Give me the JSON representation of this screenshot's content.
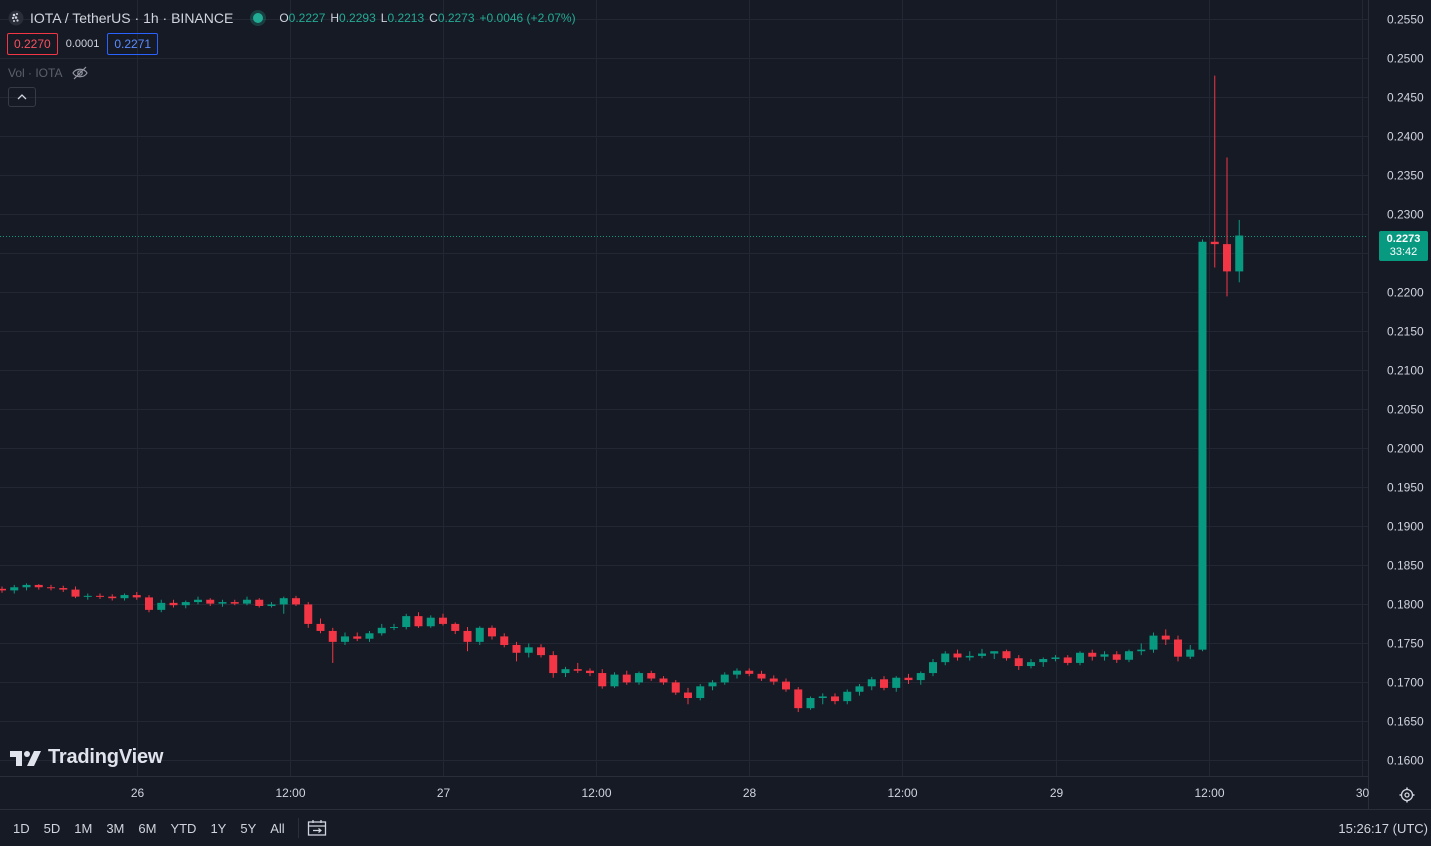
{
  "header": {
    "title": "IOTA / TetherUS · 1h · BINANCE",
    "ohlc": [
      {
        "key": "O",
        "value": "0.2227"
      },
      {
        "key": "H",
        "value": "0.2293"
      },
      {
        "key": "L",
        "value": "0.2213"
      },
      {
        "key": "C",
        "value": "0.2273"
      }
    ],
    "change": "+0.0046 (+2.07%)"
  },
  "quotes": {
    "bid": "0.2270",
    "spread": "0.0001",
    "ask": "0.2271"
  },
  "volume_label": "Vol · IOTA",
  "logo_text": "TradingView",
  "last_price": {
    "price": "0.2273",
    "countdown": "33:42"
  },
  "bottombar": {
    "ranges": [
      "1D",
      "5D",
      "1M",
      "3M",
      "6M",
      "YTD",
      "1Y",
      "5Y",
      "All"
    ],
    "clock": "15:26:17 (UTC)"
  },
  "colors": {
    "up": "#089981",
    "down": "#f23645",
    "background": "#161a25",
    "grid": "#232733"
  },
  "chart_data": {
    "type": "candlestick",
    "interval": "1h",
    "ylim": [
      0.158,
      0.2575
    ],
    "yticks": [
      "0.2550",
      "0.2500",
      "0.2450",
      "0.2400",
      "0.2350",
      "0.2300",
      "0.2250",
      "0.2200",
      "0.2150",
      "0.2100",
      "0.2050",
      "0.2000",
      "0.1950",
      "0.1900",
      "0.1850",
      "0.1800",
      "0.1750",
      "0.1700",
      "0.1650",
      "0.1600"
    ],
    "xticks": [
      "26",
      "12:00",
      "27",
      "12:00",
      "28",
      "12:00",
      "29",
      "12:00",
      "30"
    ],
    "last_price": 0.2273,
    "candles": [
      [
        0.182,
        0.1823,
        0.1815,
        0.1818
      ],
      [
        0.1818,
        0.1825,
        0.1814,
        0.1822
      ],
      [
        0.1822,
        0.1827,
        0.1818,
        0.1825
      ],
      [
        0.1825,
        0.1826,
        0.1819,
        0.1822
      ],
      [
        0.1822,
        0.1825,
        0.1818,
        0.1821
      ],
      [
        0.1821,
        0.1824,
        0.1816,
        0.1819
      ],
      [
        0.1819,
        0.1823,
        0.1808,
        0.181
      ],
      [
        0.181,
        0.1814,
        0.1806,
        0.1811
      ],
      [
        0.1811,
        0.1814,
        0.1807,
        0.181
      ],
      [
        0.181,
        0.1813,
        0.1805,
        0.1808
      ],
      [
        0.1808,
        0.1814,
        0.1805,
        0.1812
      ],
      [
        0.1812,
        0.1816,
        0.1806,
        0.1809
      ],
      [
        0.1809,
        0.1812,
        0.179,
        0.1793
      ],
      [
        0.1793,
        0.1806,
        0.179,
        0.1802
      ],
      [
        0.1802,
        0.1806,
        0.1796,
        0.1799
      ],
      [
        0.1799,
        0.1805,
        0.1795,
        0.1803
      ],
      [
        0.1803,
        0.181,
        0.18,
        0.1806
      ],
      [
        0.1806,
        0.1808,
        0.1798,
        0.1801
      ],
      [
        0.1801,
        0.1806,
        0.1797,
        0.1803
      ],
      [
        0.1803,
        0.1806,
        0.1799,
        0.1801
      ],
      [
        0.1801,
        0.181,
        0.1799,
        0.1806
      ],
      [
        0.1806,
        0.1808,
        0.1796,
        0.1798
      ],
      [
        0.1798,
        0.1803,
        0.1796,
        0.18
      ],
      [
        0.18,
        0.181,
        0.1788,
        0.1808
      ],
      [
        0.1808,
        0.1811,
        0.1798,
        0.18
      ],
      [
        0.18,
        0.1803,
        0.177,
        0.1775
      ],
      [
        0.1775,
        0.1782,
        0.1763,
        0.1766
      ],
      [
        0.1766,
        0.177,
        0.1725,
        0.1752
      ],
      [
        0.1752,
        0.1764,
        0.1748,
        0.1759
      ],
      [
        0.1759,
        0.1764,
        0.1753,
        0.1756
      ],
      [
        0.1756,
        0.1766,
        0.1752,
        0.1763
      ],
      [
        0.1763,
        0.1775,
        0.176,
        0.177
      ],
      [
        0.177,
        0.1775,
        0.1767,
        0.1771
      ],
      [
        0.1771,
        0.1788,
        0.1768,
        0.1785
      ],
      [
        0.1785,
        0.179,
        0.177,
        0.1772
      ],
      [
        0.1772,
        0.1786,
        0.177,
        0.1783
      ],
      [
        0.1783,
        0.1788,
        0.1773,
        0.1775
      ],
      [
        0.1775,
        0.1777,
        0.1762,
        0.1766
      ],
      [
        0.1766,
        0.1771,
        0.174,
        0.1752
      ],
      [
        0.1752,
        0.1772,
        0.1748,
        0.177
      ],
      [
        0.177,
        0.1773,
        0.1755,
        0.1759
      ],
      [
        0.1759,
        0.1763,
        0.1745,
        0.1748
      ],
      [
        0.1748,
        0.1752,
        0.1727,
        0.1738
      ],
      [
        0.1738,
        0.175,
        0.1732,
        0.1745
      ],
      [
        0.1745,
        0.1749,
        0.1732,
        0.1735
      ],
      [
        0.1735,
        0.174,
        0.1706,
        0.1712
      ],
      [
        0.1712,
        0.172,
        0.1707,
        0.1717
      ],
      [
        0.1717,
        0.1725,
        0.1712,
        0.1715
      ],
      [
        0.1715,
        0.1718,
        0.1708,
        0.1712
      ],
      [
        0.1712,
        0.1717,
        0.1692,
        0.1695
      ],
      [
        0.1695,
        0.1713,
        0.1693,
        0.171
      ],
      [
        0.171,
        0.1715,
        0.1697,
        0.17
      ],
      [
        0.17,
        0.1714,
        0.1697,
        0.1712
      ],
      [
        0.1712,
        0.1715,
        0.1702,
        0.1705
      ],
      [
        0.1705,
        0.1708,
        0.1697,
        0.17
      ],
      [
        0.17,
        0.1703,
        0.1684,
        0.1687
      ],
      [
        0.1687,
        0.1693,
        0.1672,
        0.168
      ],
      [
        0.168,
        0.1698,
        0.1677,
        0.1695
      ],
      [
        0.1695,
        0.1703,
        0.169,
        0.17
      ],
      [
        0.17,
        0.1713,
        0.1697,
        0.171
      ],
      [
        0.171,
        0.1718,
        0.1705,
        0.1715
      ],
      [
        0.1715,
        0.1718,
        0.1708,
        0.1711
      ],
      [
        0.1711,
        0.1715,
        0.1702,
        0.1705
      ],
      [
        0.1705,
        0.1709,
        0.1697,
        0.1701
      ],
      [
        0.1701,
        0.1705,
        0.1688,
        0.1691
      ],
      [
        0.1691,
        0.1694,
        0.1662,
        0.1667
      ],
      [
        0.1667,
        0.1682,
        0.1665,
        0.168
      ],
      [
        0.168,
        0.1686,
        0.1672,
        0.1682
      ],
      [
        0.1682,
        0.1686,
        0.1672,
        0.1676
      ],
      [
        0.1676,
        0.1691,
        0.1672,
        0.1688
      ],
      [
        0.1688,
        0.1698,
        0.1683,
        0.1695
      ],
      [
        0.1695,
        0.1707,
        0.169,
        0.1704
      ],
      [
        0.1704,
        0.1708,
        0.169,
        0.1693
      ],
      [
        0.1693,
        0.1708,
        0.1688,
        0.1706
      ],
      [
        0.1706,
        0.1711,
        0.1698,
        0.1703
      ],
      [
        0.1703,
        0.1714,
        0.1697,
        0.1712
      ],
      [
        0.1712,
        0.173,
        0.1708,
        0.1726
      ],
      [
        0.1726,
        0.174,
        0.1722,
        0.1737
      ],
      [
        0.1737,
        0.1742,
        0.1728,
        0.1732
      ],
      [
        0.1732,
        0.174,
        0.1728,
        0.1734
      ],
      [
        0.1734,
        0.1743,
        0.1731,
        0.1737
      ],
      [
        0.1737,
        0.174,
        0.173,
        0.174
      ],
      [
        0.174,
        0.1742,
        0.1728,
        0.1731
      ],
      [
        0.1731,
        0.1735,
        0.1716,
        0.1721
      ],
      [
        0.1721,
        0.173,
        0.1718,
        0.1726
      ],
      [
        0.1726,
        0.1732,
        0.172,
        0.173
      ],
      [
        0.173,
        0.1735,
        0.1727,
        0.1732
      ],
      [
        0.1732,
        0.1735,
        0.1722,
        0.1725
      ],
      [
        0.1725,
        0.174,
        0.1722,
        0.1738
      ],
      [
        0.1738,
        0.1742,
        0.1728,
        0.1733
      ],
      [
        0.1733,
        0.174,
        0.1728,
        0.1736
      ],
      [
        0.1736,
        0.174,
        0.1725,
        0.1729
      ],
      [
        0.1729,
        0.1742,
        0.1726,
        0.174
      ],
      [
        0.174,
        0.175,
        0.1735,
        0.1742
      ],
      [
        0.1742,
        0.1764,
        0.1738,
        0.176
      ],
      [
        0.176,
        0.1768,
        0.1748,
        0.1755
      ],
      [
        0.1755,
        0.176,
        0.1727,
        0.1733
      ],
      [
        0.1733,
        0.1748,
        0.173,
        0.1742
      ],
      [
        0.1742,
        0.2268,
        0.174,
        0.2265
      ],
      [
        0.2265,
        0.2478,
        0.2232,
        0.2262
      ],
      [
        0.2262,
        0.2373,
        0.2195,
        0.2227
      ],
      [
        0.2227,
        0.2293,
        0.2213,
        0.2273
      ]
    ]
  }
}
